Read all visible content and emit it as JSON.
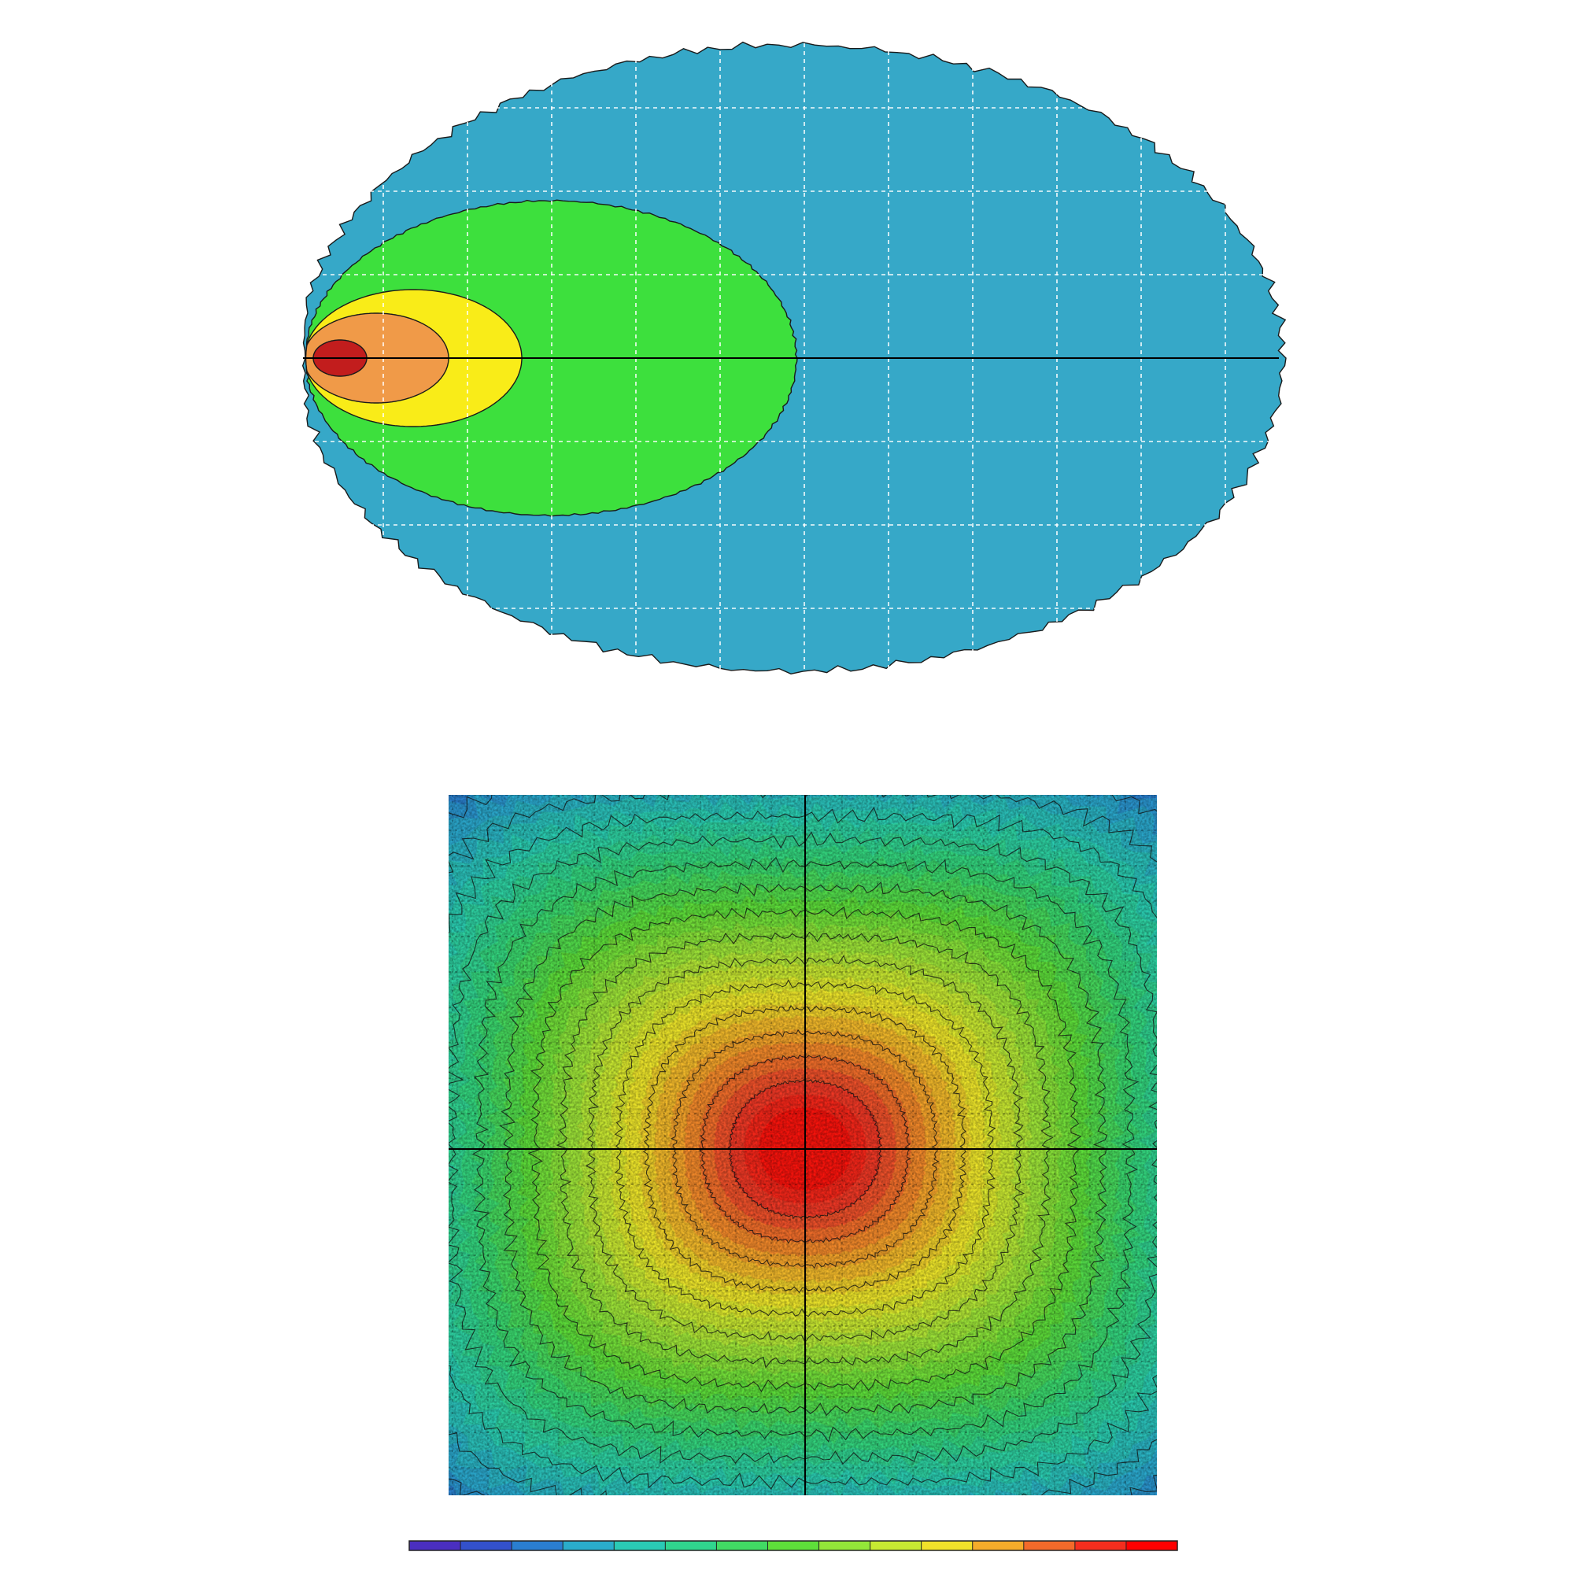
{
  "chart_data": [
    {
      "type": "heatmap",
      "variant": "filled-contour",
      "title": "",
      "xlabel": "",
      "ylabel": "",
      "grid": true,
      "grid_style": "dashed-white",
      "centerline": "horizontal",
      "levels": [
        {
          "rank": 1,
          "color": "#36a8c8"
        },
        {
          "rank": 2,
          "color": "#3de03d"
        },
        {
          "rank": 3,
          "color": "#f9ec18"
        },
        {
          "rank": 4,
          "color": "#f09a48"
        },
        {
          "rank": 5,
          "color": "#c21d1d"
        }
      ]
    },
    {
      "type": "heatmap",
      "variant": "density-with-contours",
      "title": "",
      "xlabel": "",
      "ylabel": "",
      "grid": true,
      "grid_style": "dashed-black",
      "crosshair": true,
      "peak_position": "center",
      "colorbar": {
        "orientation": "horizontal",
        "placement": "bottom",
        "stops": [
          "#4a2fc0",
          "#2a5fd0",
          "#2aa7d0",
          "#2ad0b0",
          "#35d875",
          "#5ee03a",
          "#a8e838",
          "#f0ec2a",
          "#f7a12a",
          "#f0402a",
          "#ff0000"
        ]
      }
    }
  ]
}
